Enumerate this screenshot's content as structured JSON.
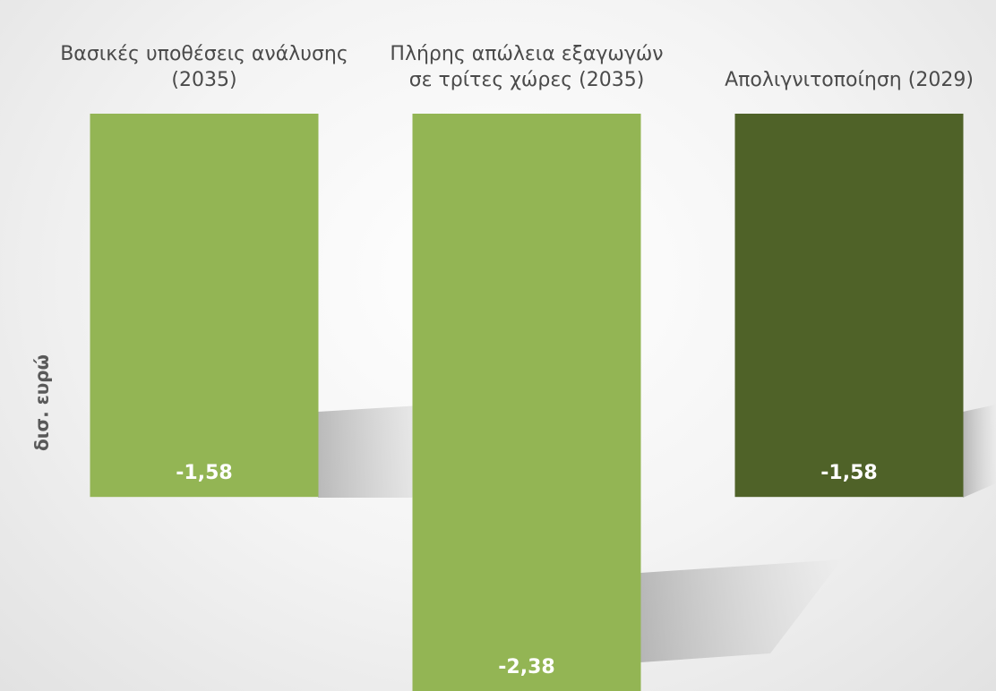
{
  "chart_data": {
    "type": "bar",
    "ylabel": "δισ. ευρώ",
    "categories": [
      "Βασικές υποθέσεις ανάλυσης (2035)",
      "Πλήρης απώλεια εξαγωγών σε τρίτες χώρες (2035)",
      "Απολιγνιτοποίηση (2029)"
    ],
    "values": [
      -1.58,
      -2.38,
      -1.58
    ],
    "value_labels": [
      "-1,58",
      "-2,38",
      "-1,58"
    ],
    "colors": [
      "#93b554",
      "#93b554",
      "#4f6228"
    ],
    "ylim": [
      -2.38,
      0
    ]
  }
}
